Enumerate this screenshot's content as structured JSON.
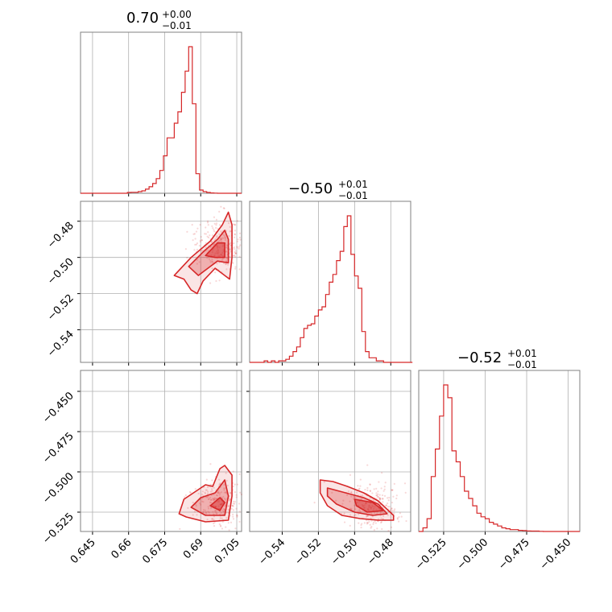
{
  "colors": {
    "accent": "#d62728",
    "grid": "#b0b0b0",
    "axes": "#808080"
  },
  "chart_data": [
    {
      "type": "histogram",
      "panel": "diag-0",
      "title": {
        "main": "0.70",
        "upper": "+0.00",
        "lower": "−0.01"
      },
      "x_range": [
        0.64,
        0.707
      ],
      "x_ticks": [
        0.645,
        0.66,
        0.675,
        0.69,
        0.705
      ],
      "bins": {
        "start": 0.64,
        "width": 0.0015,
        "heights": [
          0,
          0,
          0,
          0,
          0,
          0,
          0,
          0,
          0,
          0,
          0,
          0,
          0,
          0.005,
          0.006,
          0.006,
          0.01,
          0.015,
          0.025,
          0.04,
          0.06,
          0.09,
          0.14,
          0.23,
          0.34,
          0.34,
          0.43,
          0.5,
          0.62,
          0.75,
          0.9,
          0.55,
          0.12,
          0.02,
          0.01,
          0.005,
          0.002,
          0.001,
          0,
          0,
          0,
          0,
          0,
          0,
          0
        ]
      }
    },
    {
      "type": "histogram",
      "panel": "diag-1",
      "title": {
        "main": "−0.50",
        "upper": "+0.01",
        "lower": "−0.01"
      },
      "x_range": [
        -0.558,
        -0.469
      ],
      "x_ticks": [
        -0.54,
        -0.52,
        -0.5,
        -0.48
      ],
      "tick_labels": [
        "−0.54",
        "−0.52",
        "−0.50",
        "−0.48"
      ],
      "bins": {
        "start": -0.558,
        "width": 0.002,
        "heights": [
          0,
          0,
          0,
          0,
          0.01,
          0,
          0.01,
          0,
          0.01,
          0.01,
          0.02,
          0.04,
          0.07,
          0.1,
          0.16,
          0.22,
          0.24,
          0.25,
          0.3,
          0.34,
          0.36,
          0.44,
          0.52,
          0.57,
          0.66,
          0.72,
          0.88,
          0.95,
          0.7,
          0.56,
          0.48,
          0.2,
          0.07,
          0.03,
          0.03,
          0.01,
          0.01,
          0,
          0,
          0,
          0,
          0,
          0,
          0,
          0,
          0
        ]
      }
    },
    {
      "type": "histogram",
      "panel": "diag-2",
      "title": {
        "main": "−0.52",
        "upper": "+0.01",
        "lower": "−0.01"
      },
      "x_range": [
        -0.54,
        -0.443
      ],
      "x_ticks": [
        -0.525,
        -0.5,
        -0.475,
        -0.45
      ],
      "tick_labels": [
        "−0.525",
        "−0.500",
        "−0.475",
        "−0.450"
      ],
      "bins": {
        "start": -0.54,
        "width": 0.0025,
        "heights": [
          0,
          0.02,
          0.07,
          0.3,
          0.45,
          0.63,
          0.8,
          0.73,
          0.44,
          0.38,
          0.3,
          0.22,
          0.18,
          0.14,
          0.1,
          0.08,
          0.07,
          0.05,
          0.04,
          0.03,
          0.02,
          0.015,
          0.01,
          0.01,
          0.006,
          0.005,
          0.003,
          0.002,
          0.002,
          0.001,
          0,
          0,
          0,
          0,
          0,
          0,
          0,
          0,
          0
        ]
      }
    },
    {
      "type": "scatter-contour",
      "panel": "pair-1-0",
      "x_range": [
        0.64,
        0.707
      ],
      "y_range": [
        -0.558,
        -0.469
      ],
      "y_ticks": [
        -0.54,
        -0.52,
        -0.5,
        -0.48
      ],
      "y_tick_labels": [
        "−0.54",
        "−0.52",
        "−0.50",
        "−0.48"
      ],
      "density_peak": [
        0.698,
        -0.493
      ],
      "contours": [
        [
          [
            0.679,
            -0.51
          ],
          [
            0.686,
            -0.5
          ],
          [
            0.694,
            -0.491
          ],
          [
            0.699,
            -0.482
          ],
          [
            0.7015,
            -0.475
          ],
          [
            0.703,
            -0.482
          ],
          [
            0.703,
            -0.5
          ],
          [
            0.702,
            -0.512
          ],
          [
            0.696,
            -0.506
          ],
          [
            0.691,
            -0.513
          ],
          [
            0.6885,
            -0.52
          ],
          [
            0.686,
            -0.518
          ],
          [
            0.683,
            -0.512
          ]
        ],
        [
          [
            0.685,
            -0.505
          ],
          [
            0.691,
            -0.497
          ],
          [
            0.697,
            -0.49
          ],
          [
            0.7,
            -0.485
          ],
          [
            0.7015,
            -0.49
          ],
          [
            0.7015,
            -0.503
          ],
          [
            0.697,
            -0.502
          ],
          [
            0.693,
            -0.506
          ],
          [
            0.689,
            -0.51
          ]
        ],
        [
          [
            0.692,
            -0.499
          ],
          [
            0.697,
            -0.492
          ],
          [
            0.7,
            -0.492
          ],
          [
            0.7,
            -0.5
          ],
          [
            0.696,
            -0.5
          ]
        ]
      ]
    },
    {
      "type": "scatter-contour",
      "panel": "pair-2-0",
      "x_range": [
        0.64,
        0.707
      ],
      "y_range": [
        -0.537,
        -0.437
      ],
      "y_ticks": [
        -0.525,
        -0.5,
        -0.475,
        -0.45
      ],
      "y_tick_labels": [
        "−0.525",
        "−0.500",
        "−0.475",
        "−0.450"
      ],
      "density_peak": [
        0.697,
        -0.52
      ],
      "contours": [
        [
          [
            0.681,
            -0.526
          ],
          [
            0.683,
            -0.517
          ],
          [
            0.689,
            -0.511
          ],
          [
            0.692,
            -0.508
          ],
          [
            0.695,
            -0.509
          ],
          [
            0.698,
            -0.498
          ],
          [
            0.7,
            -0.496
          ],
          [
            0.703,
            -0.502
          ],
          [
            0.703,
            -0.515
          ],
          [
            0.7015,
            -0.53
          ],
          [
            0.692,
            -0.531
          ],
          [
            0.684,
            -0.528
          ]
        ],
        [
          [
            0.686,
            -0.522
          ],
          [
            0.69,
            -0.516
          ],
          [
            0.696,
            -0.513
          ],
          [
            0.7,
            -0.505
          ],
          [
            0.7015,
            -0.515
          ],
          [
            0.7,
            -0.527
          ],
          [
            0.692,
            -0.527
          ]
        ],
        [
          [
            0.694,
            -0.521
          ],
          [
            0.698,
            -0.516
          ],
          [
            0.7,
            -0.519
          ],
          [
            0.698,
            -0.524
          ]
        ]
      ]
    },
    {
      "type": "scatter-contour",
      "panel": "pair-2-1",
      "x_range": [
        -0.558,
        -0.469
      ],
      "y_range": [
        -0.537,
        -0.437
      ],
      "x_ticks": [
        -0.54,
        -0.52,
        -0.5,
        -0.48
      ],
      "x_tick_labels": [
        "−0.54",
        "−0.52",
        "−0.50",
        "−0.48"
      ],
      "density_peak": [
        -0.49,
        -0.522
      ],
      "contours": [
        [
          [
            -0.519,
            -0.505
          ],
          [
            -0.512,
            -0.506
          ],
          [
            -0.504,
            -0.509
          ],
          [
            -0.495,
            -0.513
          ],
          [
            -0.487,
            -0.518
          ],
          [
            -0.4785,
            -0.527
          ],
          [
            -0.4785,
            -0.53
          ],
          [
            -0.487,
            -0.53
          ],
          [
            -0.497,
            -0.529
          ],
          [
            -0.507,
            -0.527
          ],
          [
            -0.515,
            -0.521
          ],
          [
            -0.519,
            -0.513
          ]
        ],
        [
          [
            -0.515,
            -0.51
          ],
          [
            -0.505,
            -0.513
          ],
          [
            -0.495,
            -0.516
          ],
          [
            -0.487,
            -0.52
          ],
          [
            -0.482,
            -0.526
          ],
          [
            -0.49,
            -0.527
          ],
          [
            -0.5,
            -0.525
          ],
          [
            -0.51,
            -0.52
          ],
          [
            -0.515,
            -0.515
          ]
        ],
        [
          [
            -0.5,
            -0.517
          ],
          [
            -0.49,
            -0.519
          ],
          [
            -0.484,
            -0.524
          ],
          [
            -0.493,
            -0.525
          ],
          [
            -0.499,
            -0.521
          ]
        ]
      ]
    }
  ]
}
